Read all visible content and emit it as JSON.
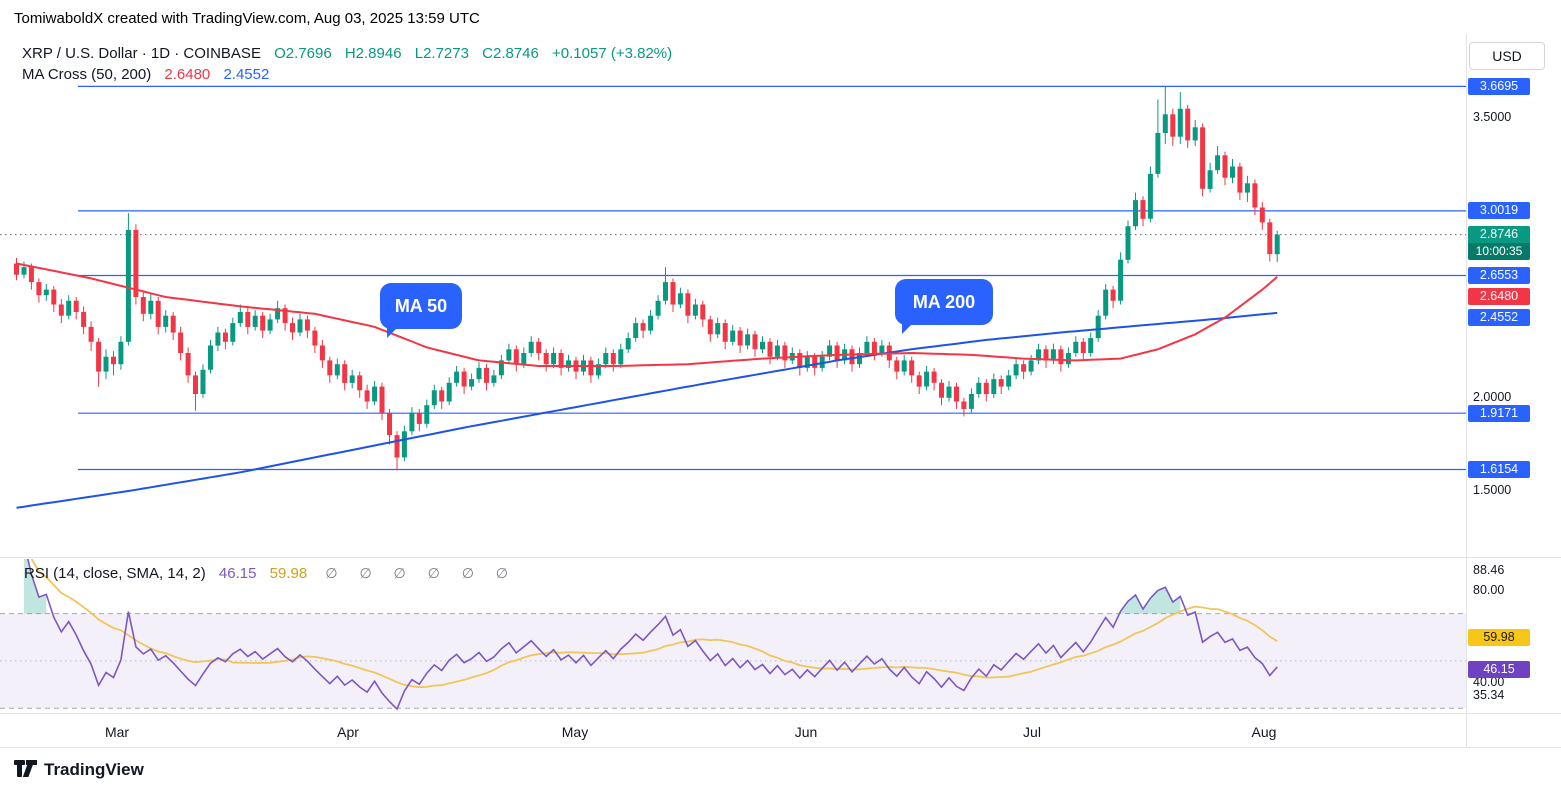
{
  "header": {
    "credit": "TomiwaboldX created with TradingView.com, Aug 03, 2025 13:59 UTC"
  },
  "legend": {
    "title": "XRP / U.S. Dollar · 1D · COINBASE",
    "open": "O2.7696",
    "high": "H2.8946",
    "low": "L2.7273",
    "close": "C2.8746",
    "change": "+0.1057 (+3.82%)",
    "ma_cross_label": "MA Cross (50, 200)",
    "ma50_value": "2.6480",
    "ma200_value": "2.4552"
  },
  "annotations": {
    "ma50_pill": "MA 50",
    "ma200_pill": "MA 200"
  },
  "price_axis": {
    "currency": "USD",
    "levels": [
      "3.6695",
      "3.0019",
      "2.6553",
      "1.9171",
      "1.6154"
    ],
    "last_price": "2.8746",
    "countdown": "10:00:35",
    "ma50_badge": "2.6480",
    "ma200_badge": "2.4552",
    "gridline_labels": [
      "3.5000",
      "2.0000",
      "1.5000"
    ]
  },
  "rsi_panel": {
    "legend": "RSI (14, close, SMA, 14, 2)",
    "value": "46.15",
    "sma": "59.98",
    "ghosts": "∅ ∅ ∅ ∅ ∅ ∅",
    "axis_top": "88.46",
    "axis_80": "80.00",
    "axis_40": "40.00",
    "axis_bottom": "35.34"
  },
  "time_axis": {
    "labels": [
      "Mar",
      "Apr",
      "May",
      "Jun",
      "Jul",
      "Aug"
    ]
  },
  "footer": {
    "brand": "TradingView"
  },
  "colors": {
    "up": "#089981",
    "down": "#F23645",
    "level_blue": "#2962FF",
    "ma50": "#F23645",
    "ma200": "#1E53E5",
    "rsi_line": "#7E57C2",
    "rsi_sma": "#F0C65A",
    "badge_green": "#089981",
    "countdown_green": "#067A68",
    "badge_yellow": "#F8C617",
    "badge_purple": "#6E42C1",
    "text_dark": "#131722",
    "muted": "#787B86"
  },
  "chart_data": {
    "type": "candlestick",
    "title": "XRP / U.S. Dollar · 1D · COINBASE",
    "x_axis": "time (daily, mid-Feb 2025 to Aug 03 2025)",
    "x_tick_labels": [
      "Mar",
      "Apr",
      "May",
      "Jun",
      "Jul",
      "Aug"
    ],
    "month_start_indices": [
      14,
      45,
      75,
      106,
      136,
      167
    ],
    "price_axis_range": [
      1.35,
      3.85
    ],
    "levels": [
      3.6695,
      3.0019,
      2.6553,
      1.9171,
      1.6154
    ],
    "last_price": 2.8746,
    "last_ohlc": {
      "o": 2.7696,
      "h": 2.8946,
      "l": 2.7273,
      "c": 2.8746,
      "change": 0.1057,
      "change_pct": 3.82
    },
    "candles": [
      [
        2.72,
        2.75,
        2.63,
        2.66
      ],
      [
        2.66,
        2.73,
        2.64,
        2.7
      ],
      [
        2.7,
        2.72,
        2.58,
        2.62
      ],
      [
        2.62,
        2.64,
        2.51,
        2.55
      ],
      [
        2.55,
        2.61,
        2.52,
        2.58
      ],
      [
        2.58,
        2.6,
        2.46,
        2.5
      ],
      [
        2.5,
        2.53,
        2.4,
        2.44
      ],
      [
        2.44,
        2.55,
        2.42,
        2.52
      ],
      [
        2.52,
        2.54,
        2.42,
        2.46
      ],
      [
        2.46,
        2.49,
        2.34,
        2.38
      ],
      [
        2.38,
        2.41,
        2.25,
        2.3
      ],
      [
        2.3,
        2.32,
        2.06,
        2.14
      ],
      [
        2.14,
        2.26,
        2.1,
        2.22
      ],
      [
        2.22,
        2.25,
        2.12,
        2.18
      ],
      [
        2.18,
        2.33,
        2.15,
        2.3
      ],
      [
        2.3,
        2.99,
        2.28,
        2.9
      ],
      [
        2.9,
        2.93,
        2.5,
        2.54
      ],
      [
        2.54,
        2.57,
        2.41,
        2.45
      ],
      [
        2.45,
        2.56,
        2.42,
        2.52
      ],
      [
        2.52,
        2.54,
        2.34,
        2.38
      ],
      [
        2.38,
        2.47,
        2.35,
        2.44
      ],
      [
        2.44,
        2.46,
        2.31,
        2.35
      ],
      [
        2.35,
        2.38,
        2.2,
        2.24
      ],
      [
        2.24,
        2.27,
        2.08,
        2.12
      ],
      [
        2.12,
        2.14,
        1.93,
        2.02
      ],
      [
        2.02,
        2.18,
        2.0,
        2.15
      ],
      [
        2.15,
        2.31,
        2.13,
        2.28
      ],
      [
        2.28,
        2.38,
        2.25,
        2.35
      ],
      [
        2.35,
        2.37,
        2.26,
        2.3
      ],
      [
        2.3,
        2.43,
        2.28,
        2.4
      ],
      [
        2.4,
        2.5,
        2.38,
        2.46
      ],
      [
        2.46,
        2.48,
        2.34,
        2.38
      ],
      [
        2.38,
        2.47,
        2.36,
        2.44
      ],
      [
        2.44,
        2.46,
        2.32,
        2.36
      ],
      [
        2.36,
        2.45,
        2.34,
        2.42
      ],
      [
        2.42,
        2.52,
        2.4,
        2.48
      ],
      [
        2.48,
        2.5,
        2.36,
        2.4
      ],
      [
        2.4,
        2.43,
        2.31,
        2.35
      ],
      [
        2.35,
        2.45,
        2.33,
        2.42
      ],
      [
        2.42,
        2.44,
        2.32,
        2.36
      ],
      [
        2.36,
        2.38,
        2.24,
        2.28
      ],
      [
        2.28,
        2.31,
        2.16,
        2.2
      ],
      [
        2.2,
        2.22,
        2.08,
        2.12
      ],
      [
        2.12,
        2.21,
        2.1,
        2.18
      ],
      [
        2.18,
        2.2,
        2.04,
        2.08
      ],
      [
        2.08,
        2.15,
        2.05,
        2.12
      ],
      [
        2.12,
        2.14,
        2.0,
        2.04
      ],
      [
        2.04,
        2.07,
        1.94,
        1.98
      ],
      [
        1.98,
        2.09,
        1.96,
        2.06
      ],
      [
        2.06,
        2.08,
        1.88,
        1.92
      ],
      [
        1.92,
        1.94,
        1.75,
        1.8
      ],
      [
        1.8,
        1.82,
        1.61,
        1.68
      ],
      [
        1.68,
        1.85,
        1.66,
        1.82
      ],
      [
        1.82,
        1.95,
        1.8,
        1.92
      ],
      [
        1.92,
        1.94,
        1.82,
        1.86
      ],
      [
        1.86,
        1.99,
        1.84,
        1.96
      ],
      [
        1.96,
        2.07,
        1.94,
        2.04
      ],
      [
        2.04,
        2.06,
        1.94,
        1.98
      ],
      [
        1.98,
        2.11,
        1.96,
        2.08
      ],
      [
        2.08,
        2.17,
        2.06,
        2.14
      ],
      [
        2.14,
        2.16,
        2.02,
        2.06
      ],
      [
        2.06,
        2.13,
        2.04,
        2.1
      ],
      [
        2.1,
        2.19,
        2.08,
        2.16
      ],
      [
        2.16,
        2.18,
        2.04,
        2.08
      ],
      [
        2.08,
        2.15,
        2.06,
        2.12
      ],
      [
        2.12,
        2.23,
        2.1,
        2.2
      ],
      [
        2.2,
        2.29,
        2.18,
        2.26
      ],
      [
        2.26,
        2.28,
        2.14,
        2.18
      ],
      [
        2.18,
        2.27,
        2.16,
        2.24
      ],
      [
        2.24,
        2.33,
        2.22,
        2.3
      ],
      [
        2.3,
        2.32,
        2.2,
        2.24
      ],
      [
        2.24,
        2.26,
        2.14,
        2.18
      ],
      [
        2.18,
        2.27,
        2.16,
        2.24
      ],
      [
        2.24,
        2.26,
        2.12,
        2.16
      ],
      [
        2.16,
        2.23,
        2.14,
        2.2
      ],
      [
        2.2,
        2.22,
        2.1,
        2.14
      ],
      [
        2.14,
        2.23,
        2.12,
        2.2
      ],
      [
        2.2,
        2.22,
        2.08,
        2.12
      ],
      [
        2.12,
        2.21,
        2.1,
        2.18
      ],
      [
        2.18,
        2.27,
        2.16,
        2.24
      ],
      [
        2.24,
        2.26,
        2.14,
        2.18
      ],
      [
        2.18,
        2.29,
        2.16,
        2.26
      ],
      [
        2.26,
        2.35,
        2.24,
        2.32
      ],
      [
        2.32,
        2.43,
        2.3,
        2.4
      ],
      [
        2.4,
        2.42,
        2.32,
        2.36
      ],
      [
        2.36,
        2.47,
        2.34,
        2.44
      ],
      [
        2.44,
        2.55,
        2.42,
        2.52
      ],
      [
        2.52,
        2.7,
        2.5,
        2.62
      ],
      [
        2.62,
        2.64,
        2.46,
        2.5
      ],
      [
        2.5,
        2.59,
        2.48,
        2.56
      ],
      [
        2.56,
        2.58,
        2.4,
        2.44
      ],
      [
        2.44,
        2.53,
        2.42,
        2.5
      ],
      [
        2.5,
        2.52,
        2.38,
        2.42
      ],
      [
        2.42,
        2.44,
        2.3,
        2.34
      ],
      [
        2.34,
        2.43,
        2.32,
        2.4
      ],
      [
        2.4,
        2.42,
        2.26,
        2.3
      ],
      [
        2.3,
        2.39,
        2.28,
        2.36
      ],
      [
        2.36,
        2.38,
        2.24,
        2.28
      ],
      [
        2.28,
        2.37,
        2.26,
        2.34
      ],
      [
        2.34,
        2.36,
        2.22,
        2.26
      ],
      [
        2.26,
        2.33,
        2.24,
        2.3
      ],
      [
        2.3,
        2.32,
        2.18,
        2.22
      ],
      [
        2.22,
        2.31,
        2.2,
        2.28
      ],
      [
        2.28,
        2.3,
        2.16,
        2.2
      ],
      [
        2.2,
        2.27,
        2.18,
        2.24
      ],
      [
        2.24,
        2.26,
        2.12,
        2.16
      ],
      [
        2.16,
        2.25,
        2.14,
        2.22
      ],
      [
        2.22,
        2.24,
        2.12,
        2.16
      ],
      [
        2.16,
        2.25,
        2.14,
        2.22
      ],
      [
        2.22,
        2.31,
        2.2,
        2.28
      ],
      [
        2.28,
        2.3,
        2.16,
        2.2
      ],
      [
        2.2,
        2.29,
        2.18,
        2.26
      ],
      [
        2.26,
        2.28,
        2.14,
        2.18
      ],
      [
        2.18,
        2.27,
        2.16,
        2.24
      ],
      [
        2.24,
        2.33,
        2.22,
        2.3
      ],
      [
        2.3,
        2.32,
        2.2,
        2.24
      ],
      [
        2.24,
        2.31,
        2.22,
        2.28
      ],
      [
        2.28,
        2.3,
        2.16,
        2.2
      ],
      [
        2.2,
        2.22,
        2.1,
        2.14
      ],
      [
        2.14,
        2.23,
        2.12,
        2.2
      ],
      [
        2.2,
        2.22,
        2.08,
        2.12
      ],
      [
        2.12,
        2.14,
        2.02,
        2.06
      ],
      [
        2.06,
        2.17,
        2.04,
        2.14
      ],
      [
        2.14,
        2.16,
        2.04,
        2.08
      ],
      [
        2.08,
        2.1,
        1.96,
        2.0
      ],
      [
        2.0,
        2.09,
        1.98,
        2.06
      ],
      [
        2.06,
        2.08,
        1.94,
        1.98
      ],
      [
        1.98,
        2.0,
        1.9,
        1.94
      ],
      [
        1.94,
        2.05,
        1.92,
        2.02
      ],
      [
        2.02,
        2.11,
        2.0,
        2.08
      ],
      [
        2.08,
        2.1,
        1.98,
        2.02
      ],
      [
        2.02,
        2.13,
        2.0,
        2.1
      ],
      [
        2.1,
        2.12,
        2.02,
        2.06
      ],
      [
        2.06,
        2.15,
        2.04,
        2.12
      ],
      [
        2.12,
        2.21,
        2.1,
        2.18
      ],
      [
        2.18,
        2.2,
        2.1,
        2.14
      ],
      [
        2.14,
        2.23,
        2.12,
        2.2
      ],
      [
        2.2,
        2.29,
        2.18,
        2.26
      ],
      [
        2.26,
        2.28,
        2.16,
        2.2
      ],
      [
        2.2,
        2.29,
        2.18,
        2.26
      ],
      [
        2.26,
        2.28,
        2.14,
        2.18
      ],
      [
        2.18,
        2.27,
        2.16,
        2.24
      ],
      [
        2.24,
        2.33,
        2.22,
        2.3
      ],
      [
        2.3,
        2.32,
        2.2,
        2.24
      ],
      [
        2.24,
        2.35,
        2.22,
        2.32
      ],
      [
        2.32,
        2.47,
        2.3,
        2.44
      ],
      [
        2.44,
        2.61,
        2.42,
        2.58
      ],
      [
        2.58,
        2.6,
        2.48,
        2.52
      ],
      [
        2.52,
        2.78,
        2.5,
        2.74
      ],
      [
        2.74,
        2.95,
        2.72,
        2.92
      ],
      [
        2.92,
        3.1,
        2.9,
        3.06
      ],
      [
        3.06,
        3.08,
        2.92,
        2.96
      ],
      [
        2.96,
        3.24,
        2.94,
        3.2
      ],
      [
        3.2,
        3.6,
        3.18,
        3.42
      ],
      [
        3.42,
        3.6695,
        3.36,
        3.52
      ],
      [
        3.52,
        3.55,
        3.35,
        3.4
      ],
      [
        3.4,
        3.64,
        3.36,
        3.55
      ],
      [
        3.55,
        3.57,
        3.34,
        3.38
      ],
      [
        3.38,
        3.49,
        3.35,
        3.45
      ],
      [
        3.45,
        3.47,
        3.08,
        3.12
      ],
      [
        3.12,
        3.26,
        3.1,
        3.22
      ],
      [
        3.22,
        3.35,
        3.2,
        3.3
      ],
      [
        3.3,
        3.32,
        3.14,
        3.18
      ],
      [
        3.18,
        3.28,
        3.15,
        3.24
      ],
      [
        3.24,
        3.26,
        3.06,
        3.1
      ],
      [
        3.1,
        3.19,
        3.05,
        3.15
      ],
      [
        3.15,
        3.17,
        2.98,
        3.02
      ],
      [
        3.02,
        3.05,
        2.9,
        2.94
      ],
      [
        2.94,
        2.96,
        2.73,
        2.77
      ],
      [
        2.7696,
        2.8946,
        2.7273,
        2.8746
      ]
    ],
    "ma50_current": 2.648,
    "ma200_current": 2.4552,
    "ma50_keypoints": [
      [
        0,
        2.72
      ],
      [
        10,
        2.64
      ],
      [
        20,
        2.54
      ],
      [
        30,
        2.49
      ],
      [
        40,
        2.45
      ],
      [
        48,
        2.38
      ],
      [
        55,
        2.27
      ],
      [
        62,
        2.2
      ],
      [
        70,
        2.17
      ],
      [
        80,
        2.17
      ],
      [
        90,
        2.18
      ],
      [
        100,
        2.21
      ],
      [
        110,
        2.23
      ],
      [
        120,
        2.24
      ],
      [
        128,
        2.23
      ],
      [
        135,
        2.21
      ],
      [
        142,
        2.2
      ],
      [
        148,
        2.21
      ],
      [
        153,
        2.26
      ],
      [
        158,
        2.34
      ],
      [
        162,
        2.43
      ],
      [
        165,
        2.52
      ],
      [
        167,
        2.58
      ],
      [
        169,
        2.648
      ]
    ],
    "ma200_keypoints": [
      [
        0,
        1.41
      ],
      [
        15,
        1.5
      ],
      [
        30,
        1.6
      ],
      [
        45,
        1.72
      ],
      [
        60,
        1.84
      ],
      [
        75,
        1.95
      ],
      [
        90,
        2.06
      ],
      [
        100,
        2.13
      ],
      [
        110,
        2.2
      ],
      [
        120,
        2.26
      ],
      [
        130,
        2.31
      ],
      [
        140,
        2.35
      ],
      [
        150,
        2.385
      ],
      [
        160,
        2.42
      ],
      [
        169,
        2.4552
      ]
    ],
    "rsi": {
      "length": 14,
      "source": "close",
      "smoothing": "SMA",
      "smoothing_length": 14,
      "current": 46.15,
      "sma_current": 59.98,
      "bands": [
        70,
        50,
        30
      ],
      "scale_labels": [
        88.46,
        80.0,
        40.0,
        35.34
      ],
      "overbought_fill": true
    }
  }
}
